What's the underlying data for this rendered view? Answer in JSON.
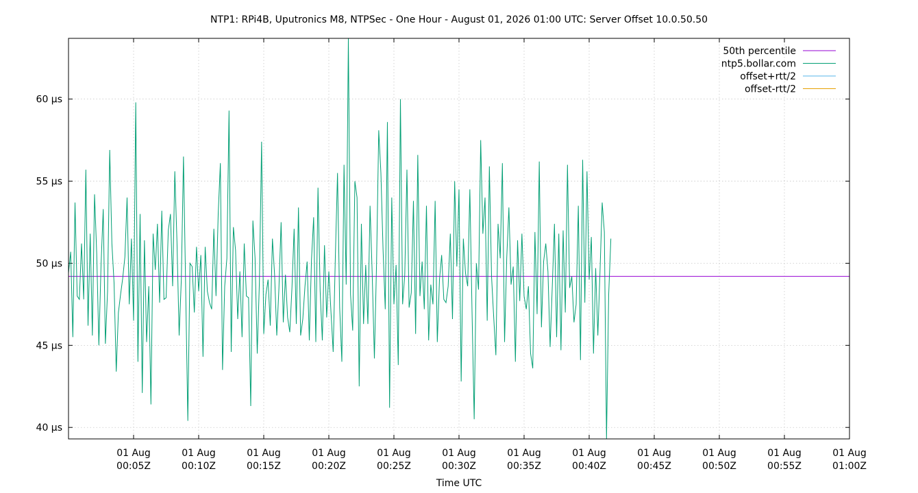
{
  "chart_data": {
    "type": "line",
    "title": "NTP1: RPi4B, Uputronics M8, NTPSec - One Hour - August 01, 2026 01:00 UTC: Server Offset 10.0.50.50",
    "xlabel": "Time UTC",
    "ylabel": "",
    "ylim": [
      39.3,
      63.7
    ],
    "xlim": [
      "2026-08-01T00:00Z",
      "2026-08-01T01:00Z"
    ],
    "grid": true,
    "legend_position": "top-right",
    "y_ticks": [
      {
        "value": 40,
        "label": "40 µs"
      },
      {
        "value": 45,
        "label": "45 µs"
      },
      {
        "value": 50,
        "label": "50 µs"
      },
      {
        "value": 55,
        "label": "55 µs"
      },
      {
        "value": 60,
        "label": "60 µs"
      }
    ],
    "x_ticks": [
      {
        "value": "2026-08-01T00:05Z",
        "line1": "01 Aug",
        "line2": "00:05Z"
      },
      {
        "value": "2026-08-01T00:10Z",
        "line1": "01 Aug",
        "line2": "00:10Z"
      },
      {
        "value": "2026-08-01T00:15Z",
        "line1": "01 Aug",
        "line2": "00:15Z"
      },
      {
        "value": "2026-08-01T00:20Z",
        "line1": "01 Aug",
        "line2": "00:20Z"
      },
      {
        "value": "2026-08-01T00:25Z",
        "line1": "01 Aug",
        "line2": "00:25Z"
      },
      {
        "value": "2026-08-01T00:30Z",
        "line1": "01 Aug",
        "line2": "00:30Z"
      },
      {
        "value": "2026-08-01T00:35Z",
        "line1": "01 Aug",
        "line2": "00:35Z"
      },
      {
        "value": "2026-08-01T00:40Z",
        "line1": "01 Aug",
        "line2": "00:40Z"
      },
      {
        "value": "2026-08-01T00:45Z",
        "line1": "01 Aug",
        "line2": "00:45Z"
      },
      {
        "value": "2026-08-01T00:50Z",
        "line1": "01 Aug",
        "line2": "00:50Z"
      },
      {
        "value": "2026-08-01T00:55Z",
        "line1": "01 Aug",
        "line2": "00:55Z"
      },
      {
        "value": "2026-08-01T01:00Z",
        "line1": "01 Aug",
        "line2": "01:00Z"
      }
    ],
    "series": [
      {
        "name": "50th percentile",
        "color": "#9400d3",
        "y": 49.2
      },
      {
        "name": "ntp5.bollar.com",
        "color": "#009e73",
        "x_start": "2026-08-01T00:00Z",
        "x_step_seconds": 10,
        "values": [
          49.4,
          50.7,
          45.5,
          53.7,
          48.0,
          47.8,
          51.2,
          47.8,
          55.7,
          46.2,
          51.8,
          45.6,
          54.2,
          50.6,
          45.0,
          49.9,
          53.3,
          45.1,
          48.3,
          56.9,
          51.2,
          48.8,
          43.4,
          47.0,
          48.1,
          49.1,
          50.4,
          54.0,
          47.5,
          51.5,
          46.5,
          59.8,
          44.0,
          53.0,
          42.1,
          51.4,
          45.2,
          48.6,
          41.4,
          51.8,
          49.6,
          52.4,
          47.6,
          53.2,
          47.8,
          47.9,
          52.0,
          53.0,
          48.6,
          55.6,
          51.3,
          45.6,
          49.0,
          56.5,
          48.5,
          40.4,
          50.0,
          49.8,
          47.0,
          51.0,
          48.3,
          50.5,
          44.3,
          51.0,
          48.3,
          47.6,
          47.2,
          52.1,
          48.0,
          53.0,
          56.1,
          43.5,
          48.6,
          50.3,
          59.3,
          44.6,
          52.2,
          50.8,
          46.6,
          49.5,
          45.5,
          51.2,
          48.0,
          47.9,
          41.3,
          52.6,
          50.3,
          44.5,
          48.9,
          57.4,
          45.7,
          48.1,
          49.0,
          46.2,
          51.5,
          49.3,
          45.6,
          48.5,
          52.5,
          46.4,
          49.3,
          46.7,
          45.8,
          48.5,
          52.1,
          46.3,
          53.4,
          45.6,
          46.6,
          48.6,
          50.1,
          45.3,
          50.2,
          52.8,
          45.2,
          54.6,
          48.3,
          45.3,
          51.1,
          46.7,
          49.5,
          47.0,
          44.6,
          50.4,
          55.5,
          47.3,
          44.0,
          56.0,
          48.7,
          63.7,
          48.1,
          45.9,
          55.0,
          54.0,
          42.5,
          52.4,
          46.3,
          49.9,
          46.3,
          53.5,
          49.3,
          44.2,
          50.0,
          58.1,
          55.5,
          50.8,
          47.2,
          58.6,
          41.2,
          54.0,
          47.5,
          49.9,
          43.8,
          60.0,
          47.5,
          49.3,
          55.7,
          47.3,
          48.2,
          53.8,
          45.7,
          56.6,
          48.0,
          50.1,
          47.2,
          53.5,
          45.3,
          48.7,
          47.5,
          53.8,
          45.2,
          49.0,
          50.5,
          47.8,
          47.6,
          48.6,
          51.8,
          46.6,
          55.0,
          49.8,
          54.5,
          42.8,
          51.5,
          49.4,
          48.6,
          54.5,
          47.1,
          40.5,
          50.0,
          48.4,
          57.5,
          51.8,
          54.0,
          46.5,
          55.9,
          49.2,
          46.7,
          44.4,
          52.4,
          50.3,
          56.1,
          45.2,
          50.3,
          53.4,
          48.7,
          49.8,
          44.0,
          51.4,
          47.7,
          51.8,
          48.0,
          47.2,
          48.6,
          44.5,
          43.6,
          51.9,
          46.9,
          56.2,
          46.1,
          50.1,
          51.2,
          49.5,
          44.9,
          48.6,
          52.4,
          45.5,
          51.8,
          44.7,
          52.0,
          47.0,
          56.0,
          48.5,
          49.2,
          46.4,
          47.5,
          53.5,
          44.1,
          56.3,
          47.6,
          55.6,
          49.0,
          51.6,
          44.5,
          49.7,
          45.6,
          49.5,
          53.7,
          51.9,
          39.3,
          48.1,
          51.5
        ]
      },
      {
        "name": "offset+rtt/2",
        "color": "#56b4e9"
      },
      {
        "name": "offset-rtt/2",
        "color": "#e69f00"
      }
    ]
  }
}
